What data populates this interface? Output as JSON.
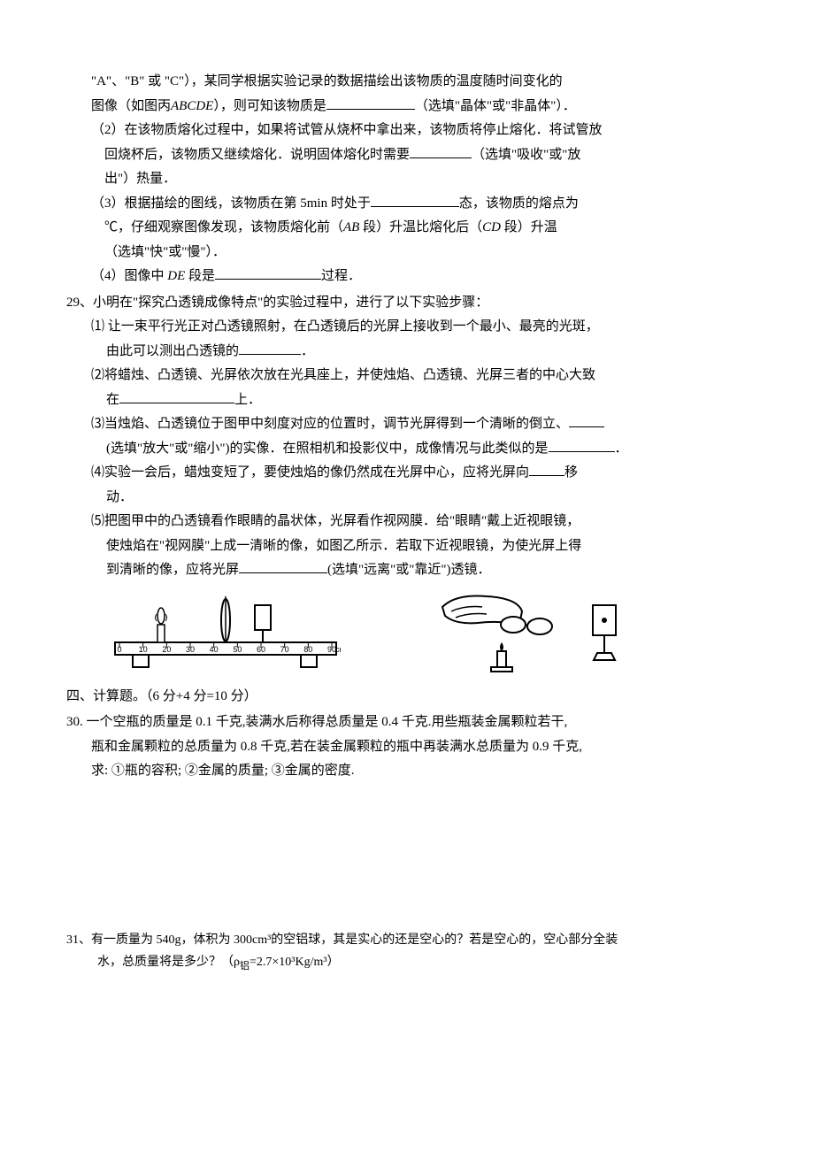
{
  "q28": {
    "cont1a": "\"A\"、\"B\" 或 \"C\"），某同学根据实验记录的数据描绘出该物质的温度随时间变化的",
    "cont1b_pre": "图像（如图丙",
    "cont1b_it": "ABCDE",
    "cont1b_post": "），则可知该物质是",
    "cont1b_tail": "（选填\"晶体\"或\"非晶体\"）．",
    "p2a": "（2）在该物质熔化过程中，如果将试管从烧杯中拿出来，该物质将停止熔化．将试管放",
    "p2b_pre": "回烧杯后，该物质又继续熔化．说明固体熔化时需要",
    "p2b_tail": "（选填\"吸收\"或\"放",
    "p2c": "出\"）热量．",
    "p3a_pre": "（3）根据描绘的图线，该物质在第 5min 时处于",
    "p3a_tail": "态，该物质的熔点为",
    "p3b_pre": "℃，仔细观察图像发现，该物质熔化前（",
    "p3b_it1": "AB",
    "p3b_mid": " 段）升温比熔化后（",
    "p3b_it2": "CD",
    "p3b_tail": " 段）升温",
    "p3c": "（选填\"快\"或\"慢\"）．",
    "p4_pre": "（4）图像中 ",
    "p4_it": "DE",
    "p4_mid": " 段是",
    "p4_tail": "过程．"
  },
  "q29": {
    "stem": "29、小明在\"探究凸透镜成像特点\"的实验过程中，进行了以下实验步骤：",
    "p1a": "⑴ 让一束平行光正对凸透镜照射，在凸透镜后的光屏上接收到一个最小、最亮的光斑，",
    "p1b_pre": "由此可以测出凸透镜的",
    "p1b_tail": "．",
    "p2a": "⑵将蜡烛、凸透镜、光屏依次放在光具座上，并使烛焰、凸透镜、光屏三者的中心大致",
    "p2b_pre": "在",
    "p2b_tail": "上．",
    "p3a_pre": "⑶当烛焰、凸透镜位于图甲中刻度对应的位置时，调节光屏得到一个清晰的倒立、",
    "p3b_pre": "(选填\"放大\"或\"缩小\")的实像．在照相机和投影仪中，成像情况与此类似的是",
    "p3b_tail": "．",
    "p4a_pre": "⑷实验一会后，蜡烛变短了，要使烛焰的像仍然成在光屏中心，应将光屏向",
    "p4a_tail": "移",
    "p4b": "动．",
    "p5a": "⑸把图甲中的凸透镜看作眼睛的晶状体，光屏看作视网膜．给\"眼睛\"戴上近视眼镜，",
    "p5b": "使烛焰在\"视网膜\"上成一清晰的像，如图乙所示．若取下近视眼镜，为使光屏上得",
    "p5c_pre": "到清晰的像，应将光屏",
    "p5c_tail": "(选填\"远离\"或\"靠近\")透镜．"
  },
  "section4_title": "四、计算题。（6 分+4 分=10 分）",
  "q30": {
    "l1": "30. 一个空瓶的质量是 0.1 千克,装满水后称得总质量是 0.4 千克.用些瓶装金属颗粒若干,",
    "l2": "瓶和金属颗粒的总质量为 0.8 千克,若在装金属颗粒的瓶中再装满水总质量为 0.9 千克,",
    "l3": "求: ①瓶的容积; ②金属的质量; ③金属的密度."
  },
  "q31": {
    "l1": "31、有一质量为 540g，体积为 300cm³的空铝球，其是实心的还是空心的？若是空心的，空心部分全装",
    "l2_pre": "水，总质量将是多少？（ρ",
    "l2_sub": "铝",
    "l2_tail": "=2.7×10³Kg/m³）"
  },
  "figure": {
    "ruler_ticks": [
      "0",
      "10",
      "20",
      "30",
      "40",
      "50",
      "60",
      "70",
      "80",
      "90"
    ],
    "ruler_unit": "cm"
  }
}
